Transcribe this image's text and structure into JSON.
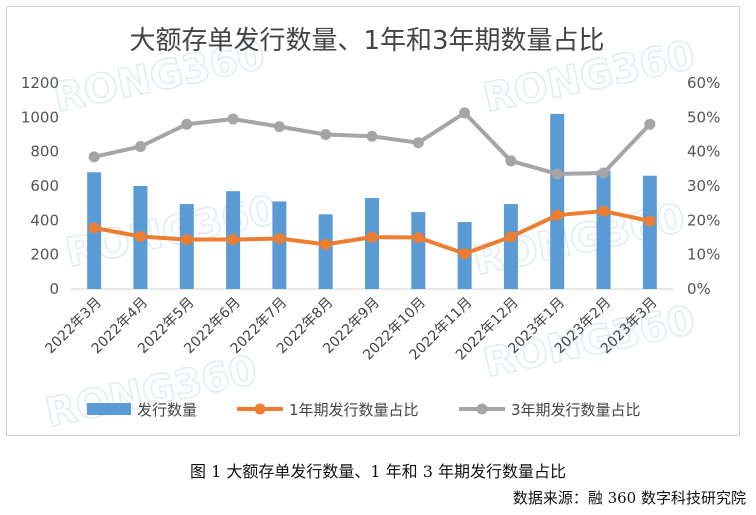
{
  "chart_data": {
    "type": "bar+line",
    "title": "大额存单发行数量、1年和3年期数量占比",
    "categories": [
      "2022年3月",
      "2022年4月",
      "2022年5月",
      "2022年6月",
      "2022年7月",
      "2022年8月",
      "2022年9月",
      "2022年10月",
      "2022年11月",
      "2022年12月",
      "2023年1月",
      "2023年2月",
      "2023年3月"
    ],
    "series": [
      {
        "name": "发行数量",
        "type": "bar",
        "axis": "left",
        "color": "#5b9bd5",
        "values": [
          680,
          600,
          495,
          570,
          510,
          435,
          530,
          448,
          390,
          495,
          1020,
          690,
          660
        ]
      },
      {
        "name": "1年期发行数量占比",
        "type": "line",
        "axis": "right",
        "color": "#ed7d31",
        "values": [
          17.8,
          15.3,
          14.4,
          14.4,
          14.7,
          13.0,
          15.1,
          15.0,
          10.3,
          15.2,
          21.5,
          22.7,
          19.8
        ]
      },
      {
        "name": "3年期发行数量占比",
        "type": "line",
        "axis": "right",
        "color": "#a5a5a5",
        "values": [
          38.5,
          41.5,
          48.0,
          49.5,
          47.3,
          45.0,
          44.5,
          42.6,
          51.3,
          37.3,
          33.5,
          33.8,
          48.0
        ]
      }
    ],
    "ylim_left": [
      0,
      1200
    ],
    "yticks_left": [
      "0",
      "200",
      "400",
      "600",
      "800",
      "1000",
      "1200"
    ],
    "ylim_right": [
      0,
      60
    ],
    "yticks_right": [
      "0%",
      "10%",
      "20%",
      "30%",
      "40%",
      "50%",
      "60%"
    ],
    "grid": false,
    "legend": "bottom"
  },
  "watermark": "RONG360",
  "caption": "图 1  大额存单发行数量、1 年和 3 年期发行数量占比",
  "source": "数据来源：融 360 数字科技研究院"
}
